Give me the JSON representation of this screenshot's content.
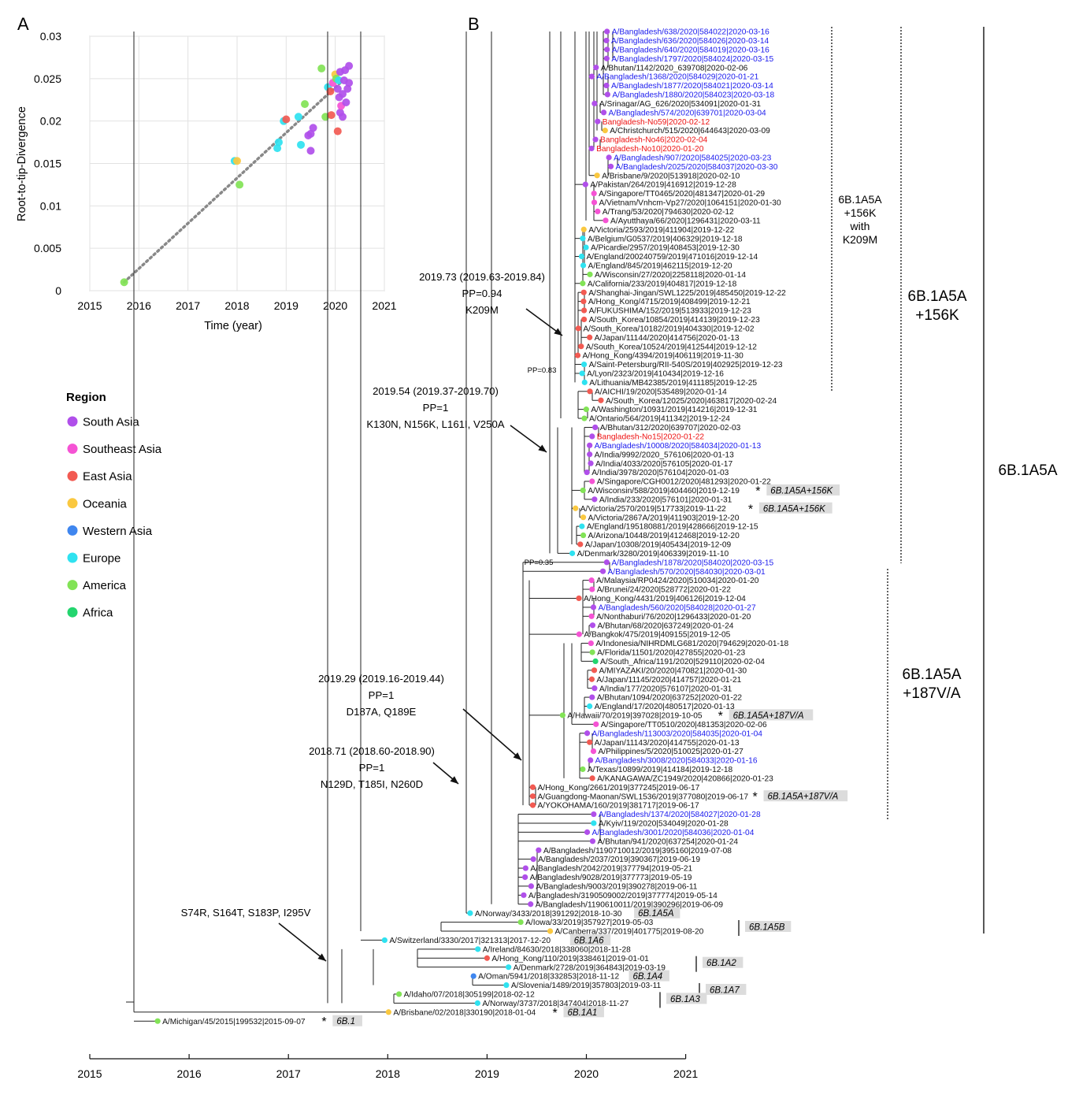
{
  "panels": {
    "a": "A",
    "b": "B"
  },
  "scatter": {
    "type": "scatter",
    "ylabel": "Root-to-tip-Divergence",
    "xlabel": "Time (year)",
    "x_ticks": [
      "2015",
      "2016",
      "2017",
      "2018",
      "2019",
      "2020",
      "2021"
    ],
    "y_ticks": [
      "0",
      "0.005",
      "0.01",
      "0.015",
      "0.02",
      "0.025",
      "0.03"
    ],
    "xlim": [
      2015,
      2021
    ],
    "ylim": [
      0,
      0.03
    ],
    "grid": true,
    "trend_line": {
      "x": [
        2015.7,
        2020.1
      ],
      "y": [
        0.001,
        0.0245
      ]
    },
    "points": [
      {
        "x": 2015.7,
        "y": 0.001,
        "region": "America"
      },
      {
        "x": 2017.95,
        "y": 0.0153,
        "region": "Europe"
      },
      {
        "x": 2018.0,
        "y": 0.0153,
        "region": "Oceania"
      },
      {
        "x": 2018.05,
        "y": 0.0125,
        "region": "America"
      },
      {
        "x": 2018.82,
        "y": 0.0168,
        "region": "Europe"
      },
      {
        "x": 2018.85,
        "y": 0.0175,
        "region": "Europe"
      },
      {
        "x": 2018.95,
        "y": 0.02,
        "region": "Europe"
      },
      {
        "x": 2019.0,
        "y": 0.0202,
        "region": "East Asia"
      },
      {
        "x": 2019.25,
        "y": 0.0205,
        "region": "Europe"
      },
      {
        "x": 2019.3,
        "y": 0.0172,
        "region": "Europe"
      },
      {
        "x": 2019.38,
        "y": 0.022,
        "region": "America"
      },
      {
        "x": 2019.45,
        "y": 0.0183,
        "region": "South Asia"
      },
      {
        "x": 2019.5,
        "y": 0.0185,
        "region": "South Asia"
      },
      {
        "x": 2019.5,
        "y": 0.0165,
        "region": "South Asia"
      },
      {
        "x": 2019.55,
        "y": 0.0192,
        "region": "South Asia"
      },
      {
        "x": 2019.72,
        "y": 0.0262,
        "region": "America"
      },
      {
        "x": 2019.8,
        "y": 0.0205,
        "region": "America"
      },
      {
        "x": 2019.85,
        "y": 0.024,
        "region": "Europe"
      },
      {
        "x": 2019.9,
        "y": 0.0235,
        "region": "East Asia"
      },
      {
        "x": 2019.92,
        "y": 0.0207,
        "region": "East Asia"
      },
      {
        "x": 2019.95,
        "y": 0.0245,
        "region": "Southeast Asia"
      },
      {
        "x": 2020.0,
        "y": 0.0255,
        "region": "Oceania"
      },
      {
        "x": 2020.02,
        "y": 0.025,
        "region": "America"
      },
      {
        "x": 2020.05,
        "y": 0.0188,
        "region": "East Asia"
      },
      {
        "x": 2020.05,
        "y": 0.0238,
        "region": "South Asia"
      },
      {
        "x": 2020.07,
        "y": 0.0248,
        "region": "Europe"
      },
      {
        "x": 2020.08,
        "y": 0.0228,
        "region": "South Asia"
      },
      {
        "x": 2020.1,
        "y": 0.0258,
        "region": "South Asia"
      },
      {
        "x": 2020.1,
        "y": 0.021,
        "region": "South Asia"
      },
      {
        "x": 2020.12,
        "y": 0.0218,
        "region": "Southeast Asia"
      },
      {
        "x": 2020.15,
        "y": 0.0232,
        "region": "South Asia"
      },
      {
        "x": 2020.15,
        "y": 0.0205,
        "region": "South Asia"
      },
      {
        "x": 2020.18,
        "y": 0.0248,
        "region": "South Asia"
      },
      {
        "x": 2020.2,
        "y": 0.026,
        "region": "South Asia"
      },
      {
        "x": 2020.22,
        "y": 0.0222,
        "region": "South Asia"
      },
      {
        "x": 2020.25,
        "y": 0.0238,
        "region": "South Asia"
      },
      {
        "x": 2020.28,
        "y": 0.0265,
        "region": "South Asia"
      },
      {
        "x": 2020.28,
        "y": 0.0245,
        "region": "South Asia"
      }
    ]
  },
  "legend": {
    "title": "Region",
    "items": [
      {
        "label": "South Asia",
        "color": "#b04fea"
      },
      {
        "label": "Southeast Asia",
        "color": "#f553d4"
      },
      {
        "label": "East Asia",
        "color": "#f25a52"
      },
      {
        "label": "Oceania",
        "color": "#fac840"
      },
      {
        "label": "Western Asia",
        "color": "#3f86ef"
      },
      {
        "label": "Europe",
        "color": "#2fe2f0"
      },
      {
        "label": "America",
        "color": "#82e356"
      },
      {
        "label": "Africa",
        "color": "#23d56e"
      }
    ]
  },
  "colors": {
    "bangladesh_blue": "#1a1aee",
    "novel_red": "#ee1111",
    "clade_box": "#dcdcdc"
  },
  "tree": {
    "time_axis": [
      "2015",
      "2016",
      "2017",
      "2018",
      "2019",
      "2020",
      "2021"
    ],
    "tips": [
      {
        "t": "A/Bangladesh/638/2020|584022|2020-03-16",
        "r": "South Asia",
        "c": "b"
      },
      {
        "t": "A/Bangladesh/636/2020|584026|2020-03-14",
        "r": "South Asia",
        "c": "b"
      },
      {
        "t": "A/Bangladesh/640/2020|584019|2020-03-16",
        "r": "South Asia",
        "c": "b"
      },
      {
        "t": "A/Bangladesh/1797/2020|584024|2020-03-15",
        "r": "South Asia",
        "c": "b"
      },
      {
        "t": "A/Bhutan/1142/2020_639708|2020-02-06",
        "r": "South Asia",
        "c": "k"
      },
      {
        "t": "A/Bangladesh/1368/2020|584029|2020-01-21",
        "r": "South Asia",
        "c": "b"
      },
      {
        "t": "A/Bangladesh/1877/2020|584021|2020-03-14",
        "r": "South Asia",
        "c": "b"
      },
      {
        "t": "A/Bangladesh/1880/2020|584023|2020-03-18",
        "r": "South Asia",
        "c": "b"
      },
      {
        "t": "A/Srinagar/AG_626/2020|534091|2020-01-31",
        "r": "South Asia",
        "c": "k"
      },
      {
        "t": "A/Bangladesh/574/2020|639701|2020-03-04",
        "r": "South Asia",
        "c": "b"
      },
      {
        "t": "Bangladesh-No59|2020-02-12",
        "r": "South Asia",
        "c": "r"
      },
      {
        "t": "A/Christchurch/515/2020|644643|2020-03-09",
        "r": "Oceania",
        "c": "k"
      },
      {
        "t": "Bangladesh-No46|2020-02-04",
        "r": "South Asia",
        "c": "r"
      },
      {
        "t": "Bangladesh-No10|2020-01-20",
        "r": "South Asia",
        "c": "r"
      },
      {
        "t": "A/Bangladesh/907/2020|584025|2020-03-23",
        "r": "South Asia",
        "c": "b"
      },
      {
        "t": "A/Bangladesh/2025/2020|584037|2020-03-30",
        "r": "South Asia",
        "c": "b"
      },
      {
        "t": "A/Brisbane/9/2020|513918|2020-02-10",
        "r": "Oceania",
        "c": "k"
      },
      {
        "t": "A/Pakistan/264/2019|416912|2019-12-28",
        "r": "South Asia",
        "c": "k"
      },
      {
        "t": "A/Singapore/TT0465/2020|481347|2020-01-29",
        "r": "Southeast Asia",
        "c": "k"
      },
      {
        "t": "A/Vietnam/Vnhcm-Vp27/2020|1064151|2020-01-30",
        "r": "Southeast Asia",
        "c": "k"
      },
      {
        "t": "A/Trang/53/2020|794630|2020-02-12",
        "r": "Southeast Asia",
        "c": "k"
      },
      {
        "t": "A/Ayutthaya/66/2020|1296431|2020-03-11",
        "r": "Southeast Asia",
        "c": "k"
      },
      {
        "t": "A/Victoria/2593/2019|411904|2019-12-22",
        "r": "Oceania",
        "c": "k"
      },
      {
        "t": "A/Belgium/G0537/2019|406329|2019-12-18",
        "r": "Europe",
        "c": "k"
      },
      {
        "t": "A/Picardie/2957/2019|408453|2019-12-30",
        "r": "Europe",
        "c": "k"
      },
      {
        "t": "A/England/200240759/2019|471016|2019-12-14",
        "r": "Europe",
        "c": "k"
      },
      {
        "t": "A/England/845/2019|462115|2019-12-20",
        "r": "Europe",
        "c": "k"
      },
      {
        "t": "A/Wisconsin/27/2020|2258118|2020-01-14",
        "r": "America",
        "c": "k"
      },
      {
        "t": "A/California/233/2019|404817|2019-12-18",
        "r": "America",
        "c": "k"
      },
      {
        "t": "A/Shanghai-Jingan/SWL1225/2019|485450|2019-12-22",
        "r": "East Asia",
        "c": "k"
      },
      {
        "t": "A/Hong_Kong/4715/2019|408499|2019-12-21",
        "r": "East Asia",
        "c": "k"
      },
      {
        "t": "A/FUKUSHIMA/152/2019|513933|2019-12-23",
        "r": "East Asia",
        "c": "k"
      },
      {
        "t": "A/South_Korea/10854/2019|414139|2019-12-23",
        "r": "East Asia",
        "c": "k"
      },
      {
        "t": "A/South_Korea/10182/2019|404330|2019-12-02",
        "r": "East Asia",
        "c": "k"
      },
      {
        "t": "A/Japan/11144/2020|414756|2020-01-13",
        "r": "East Asia",
        "c": "k"
      },
      {
        "t": "A/South_Korea/10524/2019|412544|2019-12-12",
        "r": "East Asia",
        "c": "k"
      },
      {
        "t": "A/Hong_Kong/4394/2019|406119|2019-11-30",
        "r": "East Asia",
        "c": "k"
      },
      {
        "t": "A/Saint-Petersburg/RII-540S/2019|402925|2019-12-23",
        "r": "Europe",
        "c": "k"
      },
      {
        "t": "A/Lyon/2323/2019|410434|2019-12-16",
        "r": "Europe",
        "c": "k"
      },
      {
        "t": "A/Lithuania/MB42385/2019|411185|2019-12-25",
        "r": "Europe",
        "c": "k"
      },
      {
        "t": "A/AICHI/19/2020|535489|2020-01-14",
        "r": "East Asia",
        "c": "k"
      },
      {
        "t": "A/South_Korea/12025/2020|463817|2020-02-24",
        "r": "East Asia",
        "c": "k"
      },
      {
        "t": "A/Washington/10931/2019|414216|2019-12-31",
        "r": "America",
        "c": "k"
      },
      {
        "t": "A/Ontario/564/2019|411342|2019-12-24",
        "r": "America",
        "c": "k"
      },
      {
        "t": "A/Bhutan/312/2020|639707|2020-02-03",
        "r": "South Asia",
        "c": "k"
      },
      {
        "t": "Bangladesh-No15|2020-01-22",
        "r": "South Asia",
        "c": "r"
      },
      {
        "t": "A/Bangladesh/10008/2020|584034|2020-01-13",
        "r": "South Asia",
        "c": "b"
      },
      {
        "t": "A/India/9992/2020_576106|2020-01-13",
        "r": "South Asia",
        "c": "k"
      },
      {
        "t": "A/India/4033/2020|576105|2020-01-17",
        "r": "South Asia",
        "c": "k"
      },
      {
        "t": "A/India/3978/2020|576104|2020-01-03",
        "r": "South Asia",
        "c": "k"
      },
      {
        "t": "A/Singapore/CGH0012/2020|481293|2020-01-22",
        "r": "Southeast Asia",
        "c": "k"
      },
      {
        "t": "A/Wisconsin/588/2019|404460|2019-12-19",
        "r": "America",
        "c": "k",
        "ast": true,
        "tag": "6B.1A5A+156K"
      },
      {
        "t": "A/India/233/2020|576101|2020-01-31",
        "r": "South Asia",
        "c": "k"
      },
      {
        "t": "A/Victoria/2570/2019|517733|2019-11-22",
        "r": "Oceania",
        "c": "k",
        "ast": true,
        "tag": "6B.1A5A+156K"
      },
      {
        "t": "A/Victoria/2867A/2019|411903|2019-12-20",
        "r": "Oceania",
        "c": "k"
      },
      {
        "t": "A/England/195180881/2019|428666|2019-12-15",
        "r": "Europe",
        "c": "k"
      },
      {
        "t": "A/Arizona/10448/2019|412468|2019-12-20",
        "r": "America",
        "c": "k"
      },
      {
        "t": "A/Japan/10308/2019|405434|2019-12-09",
        "r": "East Asia",
        "c": "k"
      },
      {
        "t": "A/Denmark/3280/2019|406339|2019-11-10",
        "r": "Europe",
        "c": "k"
      },
      {
        "t": "A/Bangladesh/1878/2020|584020|2020-03-15",
        "r": "South Asia",
        "c": "b"
      },
      {
        "t": "A/Bangladesh/570/2020|584030|2020-03-01",
        "r": "South Asia",
        "c": "b"
      },
      {
        "t": "A/Malaysia/RP0424/2020|510034|2020-01-20",
        "r": "Southeast Asia",
        "c": "k"
      },
      {
        "t": "A/Brunei/24/2020|528772|2020-01-22",
        "r": "Southeast Asia",
        "c": "k"
      },
      {
        "t": "A/Hong_Kong/4431/2019|406126|2019-12-04",
        "r": "East Asia",
        "c": "k"
      },
      {
        "t": "A/Bangladesh/560/2020|584028|2020-01-27",
        "r": "South Asia",
        "c": "b"
      },
      {
        "t": "A/Nonthaburi/76/2020|1296433|2020-01-20",
        "r": "Southeast Asia",
        "c": "k"
      },
      {
        "t": "A/Bhutan/68/2020|637249|2020-01-24",
        "r": "South Asia",
        "c": "k"
      },
      {
        "t": "A/Bangkok/475/2019|409155|2019-12-05",
        "r": "Southeast Asia",
        "c": "k"
      },
      {
        "t": "A/Indonesia/NIHRDMLG681/2020|794629|2020-01-18",
        "r": "Southeast Asia",
        "c": "k"
      },
      {
        "t": "A/Florida/11501/2020|427855|2020-01-23",
        "r": "America",
        "c": "k"
      },
      {
        "t": "A/South_Africa/1191/2020|529110|2020-02-04",
        "r": "Africa",
        "c": "k"
      },
      {
        "t": "A/MIYAZAKI/20/2020|470821|2020-01-30",
        "r": "East Asia",
        "c": "k"
      },
      {
        "t": "A/Japan/11145/2020|414757|2020-01-21",
        "r": "East Asia",
        "c": "k"
      },
      {
        "t": "A/India/177/2020|576107|2020-01-31",
        "r": "South Asia",
        "c": "k"
      },
      {
        "t": "A/Bhutan/1094/2020|637252|2020-01-22",
        "r": "South Asia",
        "c": "k"
      },
      {
        "t": "A/England/17/2020|480517|2020-01-13",
        "r": "Europe",
        "c": "k"
      },
      {
        "t": "A/Hawaii/70/2019|397028|2019-10-05",
        "r": "America",
        "c": "k",
        "ast": true,
        "tag": "6B.1A5A+187V/A"
      },
      {
        "t": "A/Singapore/TT0510/2020|481353|2020-02-06",
        "r": "Southeast Asia",
        "c": "k"
      },
      {
        "t": "A/Bangladesh/113003/2020|584035|2020-01-04",
        "r": "South Asia",
        "c": "b"
      },
      {
        "t": "A/Japan/11143/2020|414755|2020-01-13",
        "r": "East Asia",
        "c": "k"
      },
      {
        "t": "A/Philippines/5/2020|510025|2020-01-27",
        "r": "Southeast Asia",
        "c": "k"
      },
      {
        "t": "A/Bangladesh/3008/2020|584033|2020-01-16",
        "r": "South Asia",
        "c": "b"
      },
      {
        "t": "A/Texas/10899/2019|414184|2019-12-18",
        "r": "America",
        "c": "k"
      },
      {
        "t": "A/KANAGAWA/ZC1949/2020|420866|2020-01-23",
        "r": "East Asia",
        "c": "k"
      },
      {
        "t": "A/Hong_Kong/2661/2019|377245|2019-06-17",
        "r": "East Asia",
        "c": "k"
      },
      {
        "t": "A/Guangdong-Maonan/SWL1536/2019|377080|2019-06-17",
        "r": "East Asia",
        "c": "k",
        "ast": true,
        "tag": "6B.1A5A+187V/A"
      },
      {
        "t": "A/YOKOHAMA/160/2019|381717|2019-06-17",
        "r": "East Asia",
        "c": "k"
      },
      {
        "t": "A/Bangladesh/1374/2020|584027|2020-01-28",
        "r": "South Asia",
        "c": "b"
      },
      {
        "t": "A/Kyiv/119/2020|534049|2020-01-28",
        "r": "Europe",
        "c": "k"
      },
      {
        "t": "A/Bangladesh/3001/2020|584036|2020-01-04",
        "r": "South Asia",
        "c": "b"
      },
      {
        "t": "A/Bhutan/941/2020|637254|2020-01-24",
        "r": "South Asia",
        "c": "k"
      },
      {
        "t": "A/Bangladesh/1190710012/2019|395160|2019-07-08",
        "r": "South Asia",
        "c": "k"
      },
      {
        "t": "A/Bangladesh/2037/2019|390367|2019-06-19",
        "r": "South Asia",
        "c": "k"
      },
      {
        "t": "A/Bangladesh/2042/2019|377794|2019-05-21",
        "r": "South Asia",
        "c": "k"
      },
      {
        "t": "A/Bangladesh/9028/2019|377773|2019-05-19",
        "r": "South Asia",
        "c": "k"
      },
      {
        "t": "A/Bangladesh/9003/2019|390278|2019-06-11",
        "r": "South Asia",
        "c": "k"
      },
      {
        "t": "A/Bangladesh/3190509002/2019|377774|2019-05-14",
        "r": "South Asia",
        "c": "k"
      },
      {
        "t": "A/Bangladesh/1190610011/2019|390296|2019-06-09",
        "r": "South Asia",
        "c": "k"
      },
      {
        "t": "A/Norway/3433/2018|391292|2018-10-30",
        "r": "Europe",
        "c": "k",
        "tag": "6B.1A5A"
      },
      {
        "t": "A/Iowa/33/2019|357927|2019-05-03",
        "r": "America",
        "c": "k"
      },
      {
        "t": "A/Canberra/337/2019|401775|2019-08-20",
        "r": "Oceania",
        "c": "k"
      },
      {
        "t": "A/Switzerland/3330/2017|321313|2017-12-20",
        "r": "Europe",
        "c": "k",
        "tag": "6B.1A6"
      },
      {
        "t": "A/Ireland/84630/2018|338060|2018-11-28",
        "r": "Europe",
        "c": "k"
      },
      {
        "t": "A/Hong_Kong/110/2019|338461|2019-01-01",
        "r": "East Asia",
        "c": "k"
      },
      {
        "t": "A/Denmark/2728/2019|364843|2019-03-19",
        "r": "Europe",
        "c": "k"
      },
      {
        "t": "A/Oman/5941/2018|332853|2018-11-12",
        "r": "Western Asia",
        "c": "k",
        "tag": "6B.1A4"
      },
      {
        "t": "A/Slovenia/1489/2019|357803|2019-03-11",
        "r": "Europe",
        "c": "k"
      },
      {
        "t": "A/Idaho/07/2018|305199|2018-02-12",
        "r": "America",
        "c": "k"
      },
      {
        "t": "A/Norway/3737/2018|347404|2018-11-27",
        "r": "Europe",
        "c": "k"
      },
      {
        "t": "A/Brisbane/02/2018|330190|2018-01-04",
        "r": "Oceania",
        "c": "k",
        "ast": true,
        "tag": "6B.1A1"
      },
      {
        "t": "A/Michigan/45/2015|199532|2015-09-07",
        "r": "America",
        "c": "k",
        "ast": true,
        "tag": "6B.1"
      }
    ],
    "loose_tags": [
      {
        "label": "6B.1A5B"
      },
      {
        "label": "6B.1A2"
      },
      {
        "label": "6B.1A7"
      },
      {
        "label": "6B.1A3"
      }
    ],
    "clade_labels": [
      {
        "lines": [
          "6B.1A5A",
          "+156K",
          "with",
          "K209M"
        ]
      },
      {
        "lines": [
          "6B.1A5A",
          "+156K"
        ]
      },
      {
        "lines": [
          "6B.1A5A"
        ]
      },
      {
        "lines": [
          "6B.1A5A",
          "+187V/A"
        ]
      }
    ],
    "node_annotations": [
      {
        "lines": [
          "2019.73 (2019.63-2019.84)",
          "PP=0.94",
          "K209M"
        ]
      },
      {
        "lines": [
          "2019.54 (2019.37-2019.70)",
          "PP=1",
          "K130N, N156K, L161I, V250A"
        ]
      },
      {
        "lines": [
          "2019.29 (2019.16-2019.44)",
          "PP=1",
          "D187A, Q189E"
        ]
      },
      {
        "lines": [
          "2018.71 (2018.60-2018.90)",
          "PP=1",
          "N129D, T185I, N260D"
        ]
      },
      {
        "lines": [
          "S74R, S164T, S183P, I295V"
        ]
      }
    ],
    "pp_labels": [
      "PP=0.83",
      "PP=0.35"
    ]
  }
}
